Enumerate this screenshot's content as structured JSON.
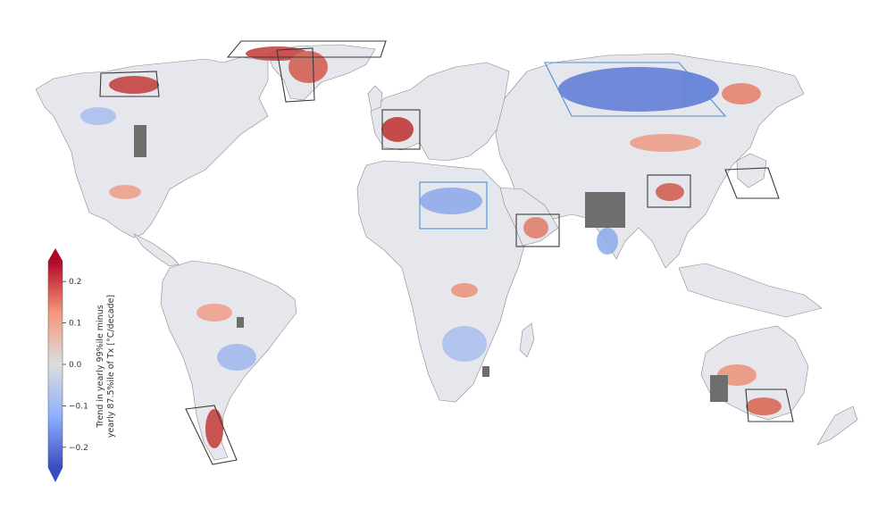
{
  "colorbar": {
    "label_line1": "Trend in yearly 99%ile minus",
    "label_line2": "yearly 87.5%ile of Tx [°C/decade]",
    "ticks": [
      "0.2",
      "0.1",
      "0.0",
      "−0.1",
      "−0.2"
    ],
    "tick_values": [
      0.2,
      0.1,
      0.0,
      -0.1,
      -0.2
    ],
    "range": [
      -0.25,
      0.25
    ],
    "colormap": "coolwarm",
    "extend": "both"
  },
  "colors": {
    "positive": "#c0392b",
    "negative": "#3b5bd6",
    "neutral": "#e8e8ea",
    "missing": "#6e6e6e",
    "warming_box": "#3a3a3a",
    "cooling_box": "#4a90d9"
  },
  "highlight_regions": {
    "positive_trend": [
      "Arctic Canada (Baffin Island)",
      "Alaska / NW Canada",
      "Greenland",
      "Iberian Peninsula",
      "Arabian Peninsula (Yemen)",
      "Central China",
      "Korea / Japan",
      "Patagonia",
      "SE Australia"
    ],
    "negative_trend": [
      "Western Siberia",
      "North Africa (Libya / Egypt)"
    ]
  }
}
